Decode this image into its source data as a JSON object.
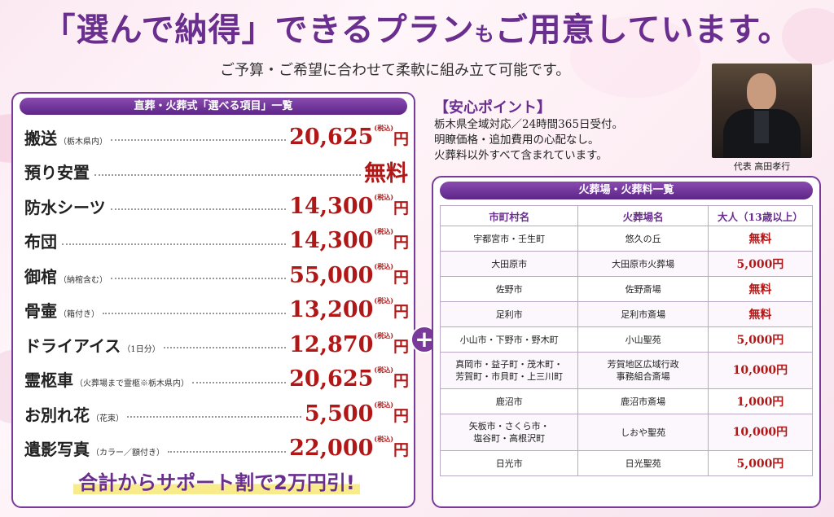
{
  "header": {
    "headline_big": "「選んで納得」できるプラン",
    "headline_mo": "も",
    "headline_end": "ご用意しています。",
    "subline": "ご予算・ご希望に合わせて柔軟に組み立て可能です。"
  },
  "left_panel": {
    "title": "直葬・火葬式「選べる項目」一覧",
    "items": [
      {
        "name": "搬送",
        "note": "（栃木県内）",
        "price": "20,625",
        "yen": "円",
        "tax": "(税込)"
      },
      {
        "name": "預り安置",
        "note": "",
        "price": "無料",
        "yen": "",
        "tax": ""
      },
      {
        "name": "防水シーツ",
        "note": "",
        "price": "14,300",
        "yen": "円",
        "tax": "(税込)"
      },
      {
        "name": "布団",
        "note": "",
        "price": "14,300",
        "yen": "円",
        "tax": "(税込)"
      },
      {
        "name": "御棺",
        "note": "（納棺含む）",
        "price": "55,000",
        "yen": "円",
        "tax": "(税込)"
      },
      {
        "name": "骨壷",
        "note": "（箱付き）",
        "price": "13,200",
        "yen": "円",
        "tax": "(税込)"
      },
      {
        "name": "ドライアイス",
        "note": "（1日分）",
        "price": "12,870",
        "yen": "円",
        "tax": "(税込)"
      },
      {
        "name": "霊柩車",
        "note": "（火葬場まで霊柩※栃木県内）",
        "price": "20,625",
        "yen": "円",
        "tax": "(税込)"
      },
      {
        "name": "お別れ花",
        "note": "（花束）",
        "price": "5,500",
        "yen": "円",
        "tax": "(税込)"
      },
      {
        "name": "遺影写真",
        "note": "（カラー／額付き）",
        "price": "22,000",
        "yen": "円",
        "tax": "(税込)"
      }
    ],
    "total_text": "合計からサポート割で2万円引!"
  },
  "plus_sign": "+",
  "assurance": {
    "title": "【安心ポイント】",
    "lines": [
      "栃木県全域対応／24時間365日受付。",
      "明瞭価格・追加費用の心配なし。",
      "火葬料以外すべて含まれています。"
    ]
  },
  "representative": {
    "caption": "代表 高田孝行"
  },
  "crematorium_table": {
    "title": "火葬場・火葬料一覧",
    "headers": [
      "市町村名",
      "火葬場名",
      "大人（13歳以上）"
    ],
    "rows": [
      {
        "city": "宇都宮市・壬生町",
        "city2": "",
        "hall": "悠久の丘",
        "hall2": "",
        "fee": "無料"
      },
      {
        "city": "大田原市",
        "city2": "",
        "hall": "大田原市火葬場",
        "hall2": "",
        "fee": "5,000円"
      },
      {
        "city": "佐野市",
        "city2": "",
        "hall": "佐野斎場",
        "hall2": "",
        "fee": "無料"
      },
      {
        "city": "足利市",
        "city2": "",
        "hall": "足利市斎場",
        "hall2": "",
        "fee": "無料"
      },
      {
        "city": "小山市・下野市・野木町",
        "city2": "",
        "hall": "小山聖苑",
        "hall2": "",
        "fee": "5,000円"
      },
      {
        "city": "真岡市・益子町・茂木町・",
        "city2": "芳賀町・市貝町・上三川町",
        "hall": "芳賀地区広域行政",
        "hall2": "事務組合斎場",
        "fee": "10,000円"
      },
      {
        "city": "鹿沼市",
        "city2": "",
        "hall": "鹿沼市斎場",
        "hall2": "",
        "fee": "1,000円"
      },
      {
        "city": "矢板市・さくら市・",
        "city2": "塩谷町・高根沢町",
        "hall": "しおや聖苑",
        "hall2": "",
        "fee": "10,000円"
      },
      {
        "city": "日光市",
        "city2": "",
        "hall": "日光聖苑",
        "hall2": "",
        "fee": "5,000円"
      }
    ]
  },
  "colors": {
    "accent": "#6a2f8e",
    "price": "#b01818",
    "highlight": "#f7eb8c"
  }
}
